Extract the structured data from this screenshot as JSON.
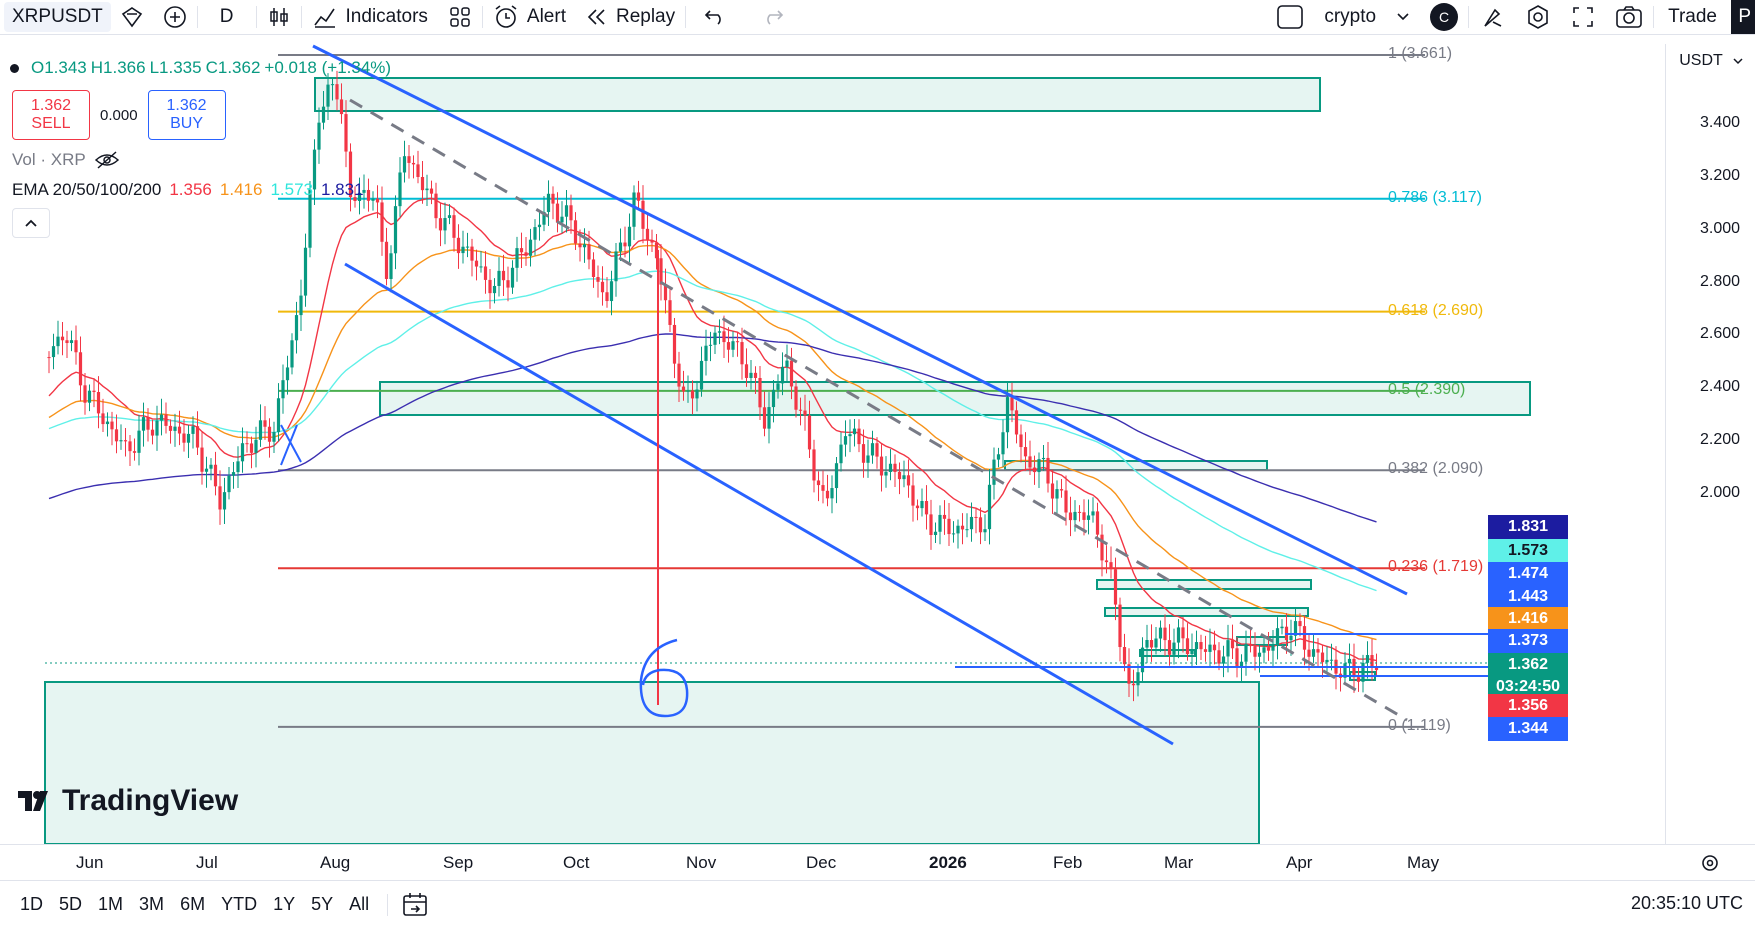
{
  "toolbar": {
    "symbol": "XRPUSDT",
    "interval": "D",
    "indicators_label": "Indicators",
    "alert_label": "Alert",
    "replay_label": "Replay",
    "layout_name": "crypto",
    "avatar_letter": "C",
    "trade_label": "Trade",
    "cut_off_label": "P"
  },
  "legend": {
    "open": "O1.343",
    "high": "H1.366",
    "low": "L1.335",
    "close": "C1.362",
    "change": "+0.018 (+1.34%)"
  },
  "order": {
    "sell_price": "1.362",
    "sell_label": "SELL",
    "spread": "0.000",
    "buy_price": "1.362",
    "buy_label": "BUY"
  },
  "volume_label": "Vol · XRP",
  "ema": {
    "label": "EMA 20/50/100/200",
    "v20": "1.356",
    "v50": "1.416",
    "v100": "1.573",
    "v200": "1.831"
  },
  "currency": "USDT",
  "price_axis": [
    "3.400",
    "3.200",
    "3.000",
    "2.800",
    "2.600",
    "2.400",
    "2.200",
    "2.000"
  ],
  "price_tags": [
    {
      "value": "1.831",
      "color": "#1c1ca0",
      "text_color": "#ffffff"
    },
    {
      "value": "1.573",
      "color": "#5ff0e8",
      "text_color": "#131722"
    },
    {
      "value": "1.474",
      "color": "#2962ff",
      "text_color": "#ffffff"
    },
    {
      "value": "1.443",
      "color": "#2962ff",
      "text_color": "#ffffff"
    },
    {
      "value": "1.416",
      "color": "#f7931a",
      "text_color": "#ffffff"
    },
    {
      "value": "1.373",
      "color": "#2962ff",
      "text_color": "#ffffff"
    },
    {
      "value": "1.362",
      "color": "#089981",
      "text_color": "#ffffff"
    },
    {
      "value": "03:24:50",
      "color": "#089981",
      "text_color": "#ffffff"
    },
    {
      "value": "1.356",
      "color": "#f23645",
      "text_color": "#ffffff"
    },
    {
      "value": "1.344",
      "color": "#2962ff",
      "text_color": "#ffffff"
    }
  ],
  "fib_levels": [
    {
      "label": "1 (3.661)",
      "price": 3.661,
      "color": "#787b86"
    },
    {
      "label": "0.786 (3.117)",
      "price": 3.117,
      "color": "#00bcd4"
    },
    {
      "label": "0.618 (2.690)",
      "price": 2.69,
      "color": "#f0b90b"
    },
    {
      "label": "0.5 (2.390)",
      "price": 2.39,
      "color": "#4caf50"
    },
    {
      "label": "0.382 (2.090)",
      "price": 2.09,
      "color": "#787b86"
    },
    {
      "label": "0.236 (1.719)",
      "price": 1.719,
      "color": "#e53935"
    },
    {
      "label": "0 (1.119)",
      "price": 1.119,
      "color": "#787b86"
    }
  ],
  "time_axis": [
    "Jun",
    "Jul",
    "Aug",
    "Sep",
    "Oct",
    "Nov",
    "Dec",
    "2026",
    "Feb",
    "Mar",
    "Apr",
    "May"
  ],
  "range_buttons": [
    "1D",
    "5D",
    "1M",
    "3M",
    "6M",
    "YTD",
    "1Y",
    "5Y",
    "All"
  ],
  "clock": "20:35:10 UTC",
  "logo_text": "TradingView",
  "annotation_digit": "6",
  "colors": {
    "up": "#089981",
    "down": "#f23645",
    "channel": "#2962ff",
    "zone": "#089981",
    "ema20": "#f23645",
    "ema50": "#f7931a",
    "ema100": "#5ff0e8",
    "ema200": "#3b2fb0"
  }
}
